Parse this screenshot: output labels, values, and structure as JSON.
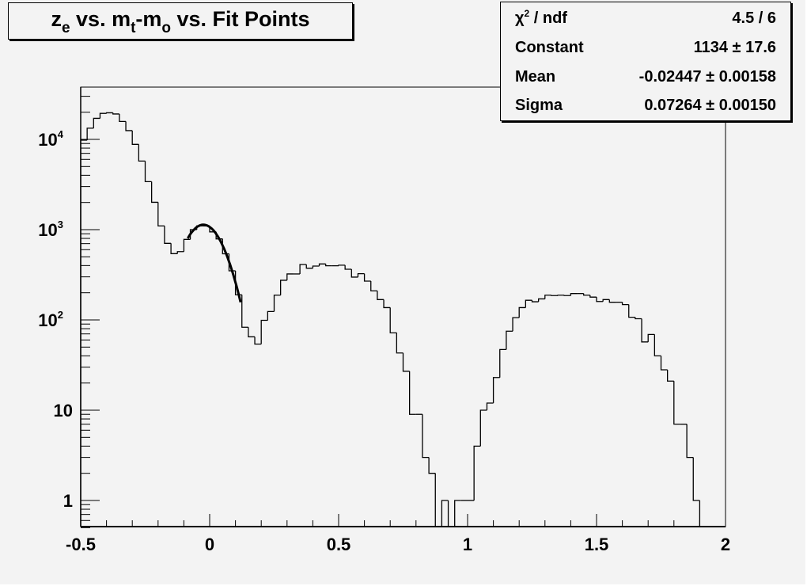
{
  "title": {
    "segments": [
      {
        "text": "z",
        "sub": "e"
      },
      {
        "text": " vs. m",
        "sub": "t"
      },
      {
        "text": "-m",
        "sub": "o"
      },
      {
        "text": " vs. Fit Points",
        "sub": ""
      }
    ]
  },
  "stats": {
    "rows": [
      {
        "label_pre": "χ",
        "label_sup": "2",
        "label_post": " / ndf",
        "value": "4.5 / 6"
      },
      {
        "label_pre": "Constant",
        "label_sup": "",
        "label_post": "",
        "value": "1134 ± 17.6"
      },
      {
        "label_pre": "Mean",
        "label_sup": "",
        "label_post": "",
        "value": "-0.02447 ± 0.00158"
      },
      {
        "label_pre": "Sigma",
        "label_sup": "",
        "label_post": "",
        "value": "0.07264 ± 0.00150"
      }
    ]
  },
  "chart_data": {
    "type": "histogram",
    "title": "z_e vs. m_t-m_o vs. Fit Points",
    "xlabel": "",
    "ylabel": "",
    "xlim": [
      -0.5,
      2.0
    ],
    "ylim": [
      0.5,
      38000
    ],
    "y_scale": "log",
    "grid": false,
    "line_color": "#000000",
    "background": "#f3f3f3",
    "bin_width": 0.025,
    "x_ticks": [
      {
        "v": -0.5,
        "label": "-0.5"
      },
      {
        "v": 0,
        "label": "0"
      },
      {
        "v": 0.5,
        "label": "0.5"
      },
      {
        "v": 1,
        "label": "1"
      },
      {
        "v": 1.5,
        "label": "1.5"
      },
      {
        "v": 2,
        "label": "2"
      }
    ],
    "y_ticks": [
      {
        "v": 1,
        "base": "1",
        "exp": ""
      },
      {
        "v": 10,
        "base": "10",
        "exp": ""
      },
      {
        "v": 100,
        "base": "10",
        "exp": "2"
      },
      {
        "v": 1000,
        "base": "10",
        "exp": "3"
      },
      {
        "v": 10000,
        "base": "10",
        "exp": "4"
      }
    ],
    "counts": [
      9800,
      13300,
      17100,
      19400,
      19700,
      19100,
      15800,
      12500,
      8800,
      5750,
      3400,
      2010,
      1100,
      705,
      542,
      571,
      780,
      1000,
      1100,
      1100,
      945,
      790,
      540,
      350,
      190,
      83,
      65,
      54,
      99,
      124,
      188,
      275,
      323,
      323,
      411,
      374,
      395,
      417,
      398,
      398,
      404,
      364,
      298,
      325,
      269,
      210,
      168,
      137,
      72,
      43,
      27,
      9,
      9,
      3,
      2,
      0,
      1,
      0,
      1,
      1,
      1,
      4,
      10,
      12,
      23,
      47,
      75,
      106,
      137,
      165,
      159,
      171,
      188,
      186,
      188,
      186,
      196,
      196,
      188,
      179,
      160,
      168,
      157,
      157,
      148,
      107,
      103,
      57,
      69,
      40,
      28,
      21,
      7,
      7,
      3,
      1,
      0,
      0,
      0,
      0
    ],
    "fit": {
      "function": "gaus",
      "constant": 1134,
      "mean": -0.02447,
      "sigma": 0.07264,
      "range": [
        -0.085,
        0.12
      ]
    }
  }
}
